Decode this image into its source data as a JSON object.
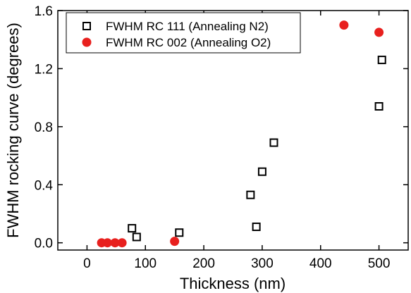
{
  "chart_data": {
    "type": "scatter",
    "title": "",
    "xlabel": "Thickness (nm)",
    "ylabel": "FWHM rocking curve (degrees)",
    "xlim": [
      -50,
      550
    ],
    "ylim": [
      -0.05,
      1.6
    ],
    "xticks": [
      0,
      100,
      200,
      300,
      400,
      500
    ],
    "yticks": [
      0.0,
      0.4,
      0.8,
      1.2,
      1.6
    ],
    "xtick_labels": [
      "0",
      "100",
      "200",
      "300",
      "400",
      "500"
    ],
    "ytick_labels": [
      "0.0",
      "0.4",
      "0.8",
      "1.2",
      "1.6"
    ],
    "grid": false,
    "legend_position": "top-left",
    "series": [
      {
        "name": "FWHM RC 111 (Annealing N2)",
        "marker": "open-square",
        "color": "#000000",
        "points": [
          [
            77,
            0.1
          ],
          [
            85,
            0.04
          ],
          [
            158,
            0.07
          ],
          [
            280,
            0.33
          ],
          [
            290,
            0.11
          ],
          [
            300,
            0.49
          ],
          [
            320,
            0.69
          ],
          [
            500,
            0.94
          ],
          [
            505,
            1.26
          ]
        ]
      },
      {
        "name": "FWHM RC 002 (Annealing O2)",
        "marker": "filled-circle",
        "color": "#e8201e",
        "points": [
          [
            25,
            0.0
          ],
          [
            35,
            0.0
          ],
          [
            48,
            0.0
          ],
          [
            60,
            0.0
          ],
          [
            150,
            0.01
          ],
          [
            440,
            1.5
          ],
          [
            500,
            1.45
          ]
        ]
      }
    ]
  }
}
